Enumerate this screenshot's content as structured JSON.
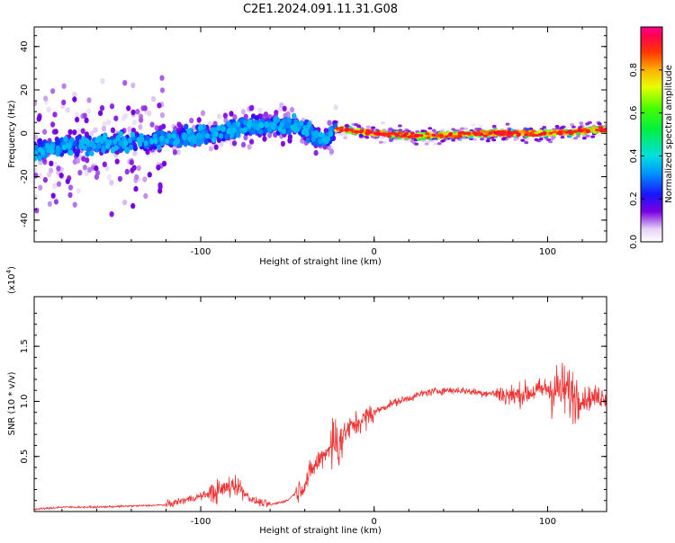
{
  "title": "C2E1.2024.091.11.31.G08",
  "chart_data": [
    {
      "type": "heatmap",
      "xlabel": "Height of straight line (km)",
      "ylabel": "Frequency (Hz)",
      "xlim": [
        -196,
        134
      ],
      "ylim": [
        -50,
        49
      ],
      "xticks": [
        -100,
        0,
        100
      ],
      "yticks": [
        -40,
        -20,
        0,
        20,
        40
      ],
      "colorbar": {
        "label": "Normalized spectral amplitude",
        "range": [
          0,
          1
        ],
        "ticks": [
          0.0,
          0.2,
          0.4,
          0.6,
          0.8
        ],
        "tick_labels": [
          "0.0",
          "0.2",
          "0.4",
          "0.6",
          "0.8"
        ]
      },
      "ridge": {
        "description_points_x": [
          -196,
          -180,
          -160,
          -140,
          -120,
          -100,
          -80,
          -60,
          -40,
          -30,
          -22,
          0,
          20,
          40,
          60,
          80,
          100,
          120,
          134
        ],
        "description_points_y": [
          -8,
          -6,
          -5,
          -4,
          -3,
          -1,
          2,
          4,
          3,
          -4,
          2,
          0,
          -1,
          -1,
          0,
          0,
          0,
          1,
          2
        ]
      }
    },
    {
      "type": "line",
      "xlabel": "Height of straight line (km)",
      "ylabel": "SNR (10 * v/v)",
      "ylabel_exponent": "(x10",
      "ylabel_exponent_power": "4",
      "ylabel_exponent_close": ")",
      "xlim": [
        -196,
        134
      ],
      "ylim": [
        0,
        1.95
      ],
      "xticks": [
        -100,
        0,
        100
      ],
      "yticks": [
        0.5,
        1.0,
        1.5
      ],
      "ytick_labels": [
        "0.5",
        "1.0",
        "1.5"
      ],
      "color": "#ee3333",
      "envelope_x": [
        -196,
        -180,
        -160,
        -140,
        -120,
        -105,
        -90,
        -80,
        -70,
        -60,
        -50,
        -40,
        -35,
        -30,
        -25,
        -20,
        -15,
        -10,
        -5,
        0,
        10,
        20,
        30,
        40,
        50,
        60,
        70,
        80,
        90,
        100,
        110,
        120,
        134
      ],
      "envelope_y": [
        0.02,
        0.04,
        0.04,
        0.05,
        0.06,
        0.12,
        0.18,
        0.25,
        0.1,
        0.06,
        0.1,
        0.25,
        0.4,
        0.5,
        0.6,
        0.65,
        0.75,
        0.8,
        0.85,
        0.9,
        0.98,
        1.03,
        1.08,
        1.1,
        1.1,
        1.08,
        1.07,
        1.05,
        1.08,
        1.12,
        1.1,
        1.02,
        1.05
      ]
    }
  ]
}
